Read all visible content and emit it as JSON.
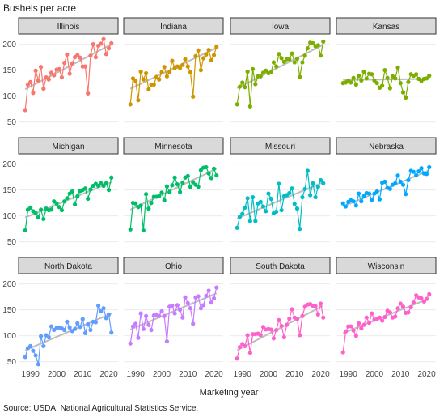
{
  "chart_data": {
    "type": "line",
    "ylabel": "Bushels per acre",
    "xlabel": "Marketing year",
    "caption": "Source: USDA, National Agricultural Statistics Service.",
    "ylim": [
      40,
      215
    ],
    "xlim": [
      1987,
      2022
    ],
    "yticks": [
      50,
      100,
      150,
      200
    ],
    "xticks": [
      1990,
      2000,
      2010,
      2020
    ],
    "grid": true,
    "trend_color": "#bdbdbd",
    "x": [
      1988,
      1989,
      1990,
      1991,
      1992,
      1993,
      1994,
      1995,
      1996,
      1997,
      1998,
      1999,
      2000,
      2001,
      2002,
      2003,
      2004,
      2005,
      2006,
      2007,
      2008,
      2009,
      2010,
      2011,
      2012,
      2013,
      2014,
      2015,
      2016,
      2017,
      2018,
      2019,
      2020,
      2021
    ],
    "panels": [
      {
        "state": "Illinois",
        "color": "#F8766D",
        "trend": [
          113,
          200
        ],
        "values": [
          73,
          122,
          127,
          106,
          149,
          130,
          156,
          114,
          136,
          132,
          145,
          140,
          151,
          152,
          136,
          164,
          180,
          143,
          163,
          175,
          179,
          174,
          157,
          157,
          105,
          178,
          200,
          175,
          197,
          201,
          210,
          181,
          192,
          202
        ]
      },
      {
        "state": "Indiana",
        "color": "#CD9600",
        "trend": [
          114,
          193
        ],
        "values": [
          84,
          134,
          129,
          92,
          147,
          132,
          144,
          113,
          122,
          122,
          137,
          132,
          146,
          156,
          138,
          146,
          168,
          154,
          157,
          154,
          160,
          171,
          157,
          146,
          99,
          177,
          188,
          150,
          173,
          180,
          189,
          169,
          179,
          195
        ]
      },
      {
        "state": "Iowa",
        "color": "#7CAE00",
        "trend": [
          115,
          199
        ],
        "values": [
          84,
          118,
          126,
          117,
          147,
          80,
          152,
          123,
          138,
          138,
          145,
          149,
          144,
          146,
          165,
          157,
          181,
          173,
          166,
          171,
          171,
          182,
          165,
          172,
          137,
          165,
          178,
          192,
          203,
          202,
          196,
          198,
          178,
          205
        ]
      },
      {
        "state": "Kansas",
        "color": "#7CAE00",
        "trend": [
          131,
          133
        ],
        "values": [
          125,
          126,
          130,
          126,
          135,
          122,
          139,
          130,
          147,
          134,
          143,
          142,
          130,
          125,
          116,
          120,
          150,
          135,
          115,
          138,
          134,
          155,
          125,
          107,
          97,
          127,
          142,
          139,
          142,
          133,
          129,
          133,
          134,
          139
        ]
      },
      {
        "state": "Michigan",
        "color": "#00BE67",
        "trend": [
          97,
          165
        ],
        "values": [
          72,
          112,
          116,
          109,
          105,
          97,
          112,
          94,
          114,
          111,
          112,
          128,
          124,
          117,
          111,
          128,
          134,
          143,
          147,
          122,
          138,
          148,
          150,
          153,
          133,
          151,
          158,
          162,
          158,
          163,
          158,
          163,
          150,
          174
        ]
      },
      {
        "state": "Minnesota",
        "color": "#00BE67",
        "trend": [
          112,
          191
        ],
        "values": [
          74,
          125,
          124,
          117,
          120,
          72,
          142,
          114,
          125,
          137,
          137,
          138,
          145,
          130,
          157,
          146,
          159,
          174,
          161,
          146,
          164,
          174,
          177,
          156,
          165,
          160,
          156,
          188,
          193,
          194,
          182,
          173,
          191,
          178
        ]
      },
      {
        "state": "Missouri",
        "color": "#00BFC4",
        "trend": [
          95,
          165
        ],
        "values": [
          77,
          98,
          104,
          116,
          134,
          90,
          136,
          90,
          124,
          127,
          118,
          109,
          143,
          133,
          105,
          108,
          162,
          111,
          138,
          140,
          144,
          153,
          123,
          114,
          75,
          136,
          152,
          187,
          140,
          163,
          136,
          156,
          169,
          163
        ]
      },
      {
        "state": "Nebraska",
        "color": "#00A9FF",
        "trend": [
          118,
          188
        ],
        "values": [
          124,
          118,
          127,
          130,
          128,
          120,
          143,
          128,
          138,
          144,
          143,
          131,
          143,
          147,
          132,
          164,
          166,
          154,
          152,
          160,
          163,
          178,
          166,
          160,
          142,
          169,
          187,
          185,
          178,
          186,
          192,
          182,
          181,
          194
        ]
      },
      {
        "state": "North Dakota",
        "color": "#619CFF",
        "trend": [
          72,
          143
        ],
        "values": [
          59,
          76,
          80,
          71,
          62,
          45,
          99,
          80,
          101,
          97,
          118,
          111,
          115,
          116,
          114,
          111,
          127,
          116,
          109,
          113,
          124,
          117,
          132,
          105,
          122,
          111,
          127,
          126,
          158,
          147,
          153,
          134,
          141,
          106
        ]
      },
      {
        "state": "Ohio",
        "color": "#C77CFF",
        "trend": [
          112,
          182
        ],
        "values": [
          85,
          118,
          123,
          96,
          143,
          113,
          138,
          121,
          111,
          139,
          141,
          138,
          147,
          138,
          89,
          156,
          158,
          143,
          159,
          150,
          135,
          174,
          163,
          153,
          123,
          174,
          176,
          153,
          159,
          177,
          187,
          164,
          172,
          193
        ]
      },
      {
        "state": "South Dakota",
        "color": "#FF61CC",
        "trend": [
          72,
          158
        ],
        "values": [
          56,
          78,
          84,
          80,
          101,
          67,
          103,
          103,
          104,
          101,
          117,
          112,
          113,
          112,
          95,
          111,
          130,
          119,
          97,
          121,
          133,
          151,
          135,
          132,
          101,
          138,
          156,
          160,
          161,
          158,
          157,
          141,
          162,
          135
        ]
      },
      {
        "state": "Wisconsin",
        "color": "#FF61CC",
        "trend": [
          105,
          172
        ],
        "values": [
          68,
          108,
          118,
          118,
          110,
          100,
          124,
          114,
          121,
          135,
          125,
          143,
          131,
          132,
          135,
          129,
          136,
          148,
          145,
          135,
          137,
          153,
          162,
          156,
          144,
          145,
          155,
          164,
          178,
          174,
          172,
          166,
          171,
          180
        ]
      }
    ]
  }
}
